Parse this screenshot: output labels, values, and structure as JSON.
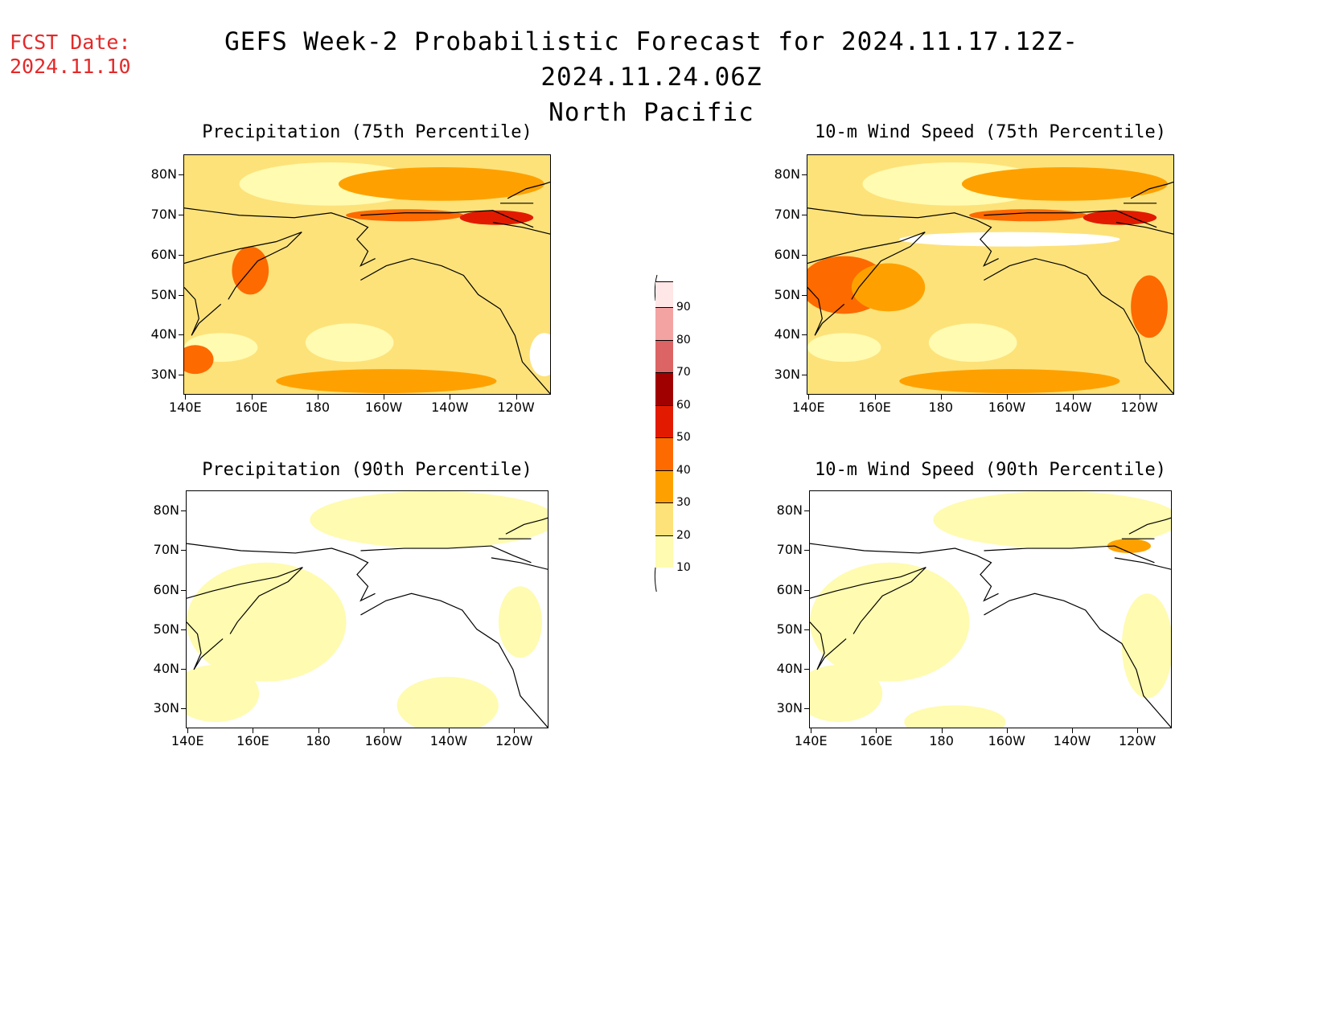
{
  "header": {
    "fcst_label": "FCST Date:",
    "fcst_date": "2024.11.10",
    "title": "GEFS Week-2 Probabilistic Forecast for 2024.11.17.12Z-2024.11.24.06Z",
    "region": "North Pacific"
  },
  "axes": {
    "lat_labels": [
      "80N",
      "70N",
      "60N",
      "50N",
      "40N",
      "30N"
    ],
    "lon_labels": [
      "140E",
      "160E",
      "180",
      "160W",
      "140W",
      "120W"
    ]
  },
  "colorbar": {
    "levels": [
      "10",
      "20",
      "30",
      "40",
      "50",
      "60",
      "70",
      "80",
      "90"
    ],
    "colors": [
      "#fffbb0",
      "#fde27a",
      "#fea100",
      "#fd6a00",
      "#e21b00",
      "#a10000",
      "#dc6464",
      "#f4a3a3",
      "#ffe7e7"
    ]
  },
  "panels": [
    {
      "title": "Precipitation (75th Percentile)"
    },
    {
      "title": "10-m Wind Speed (75th Percentile)"
    },
    {
      "title": "Precipitation (90th Percentile)"
    },
    {
      "title": "10-m Wind Speed (90th Percentile)"
    }
  ]
}
